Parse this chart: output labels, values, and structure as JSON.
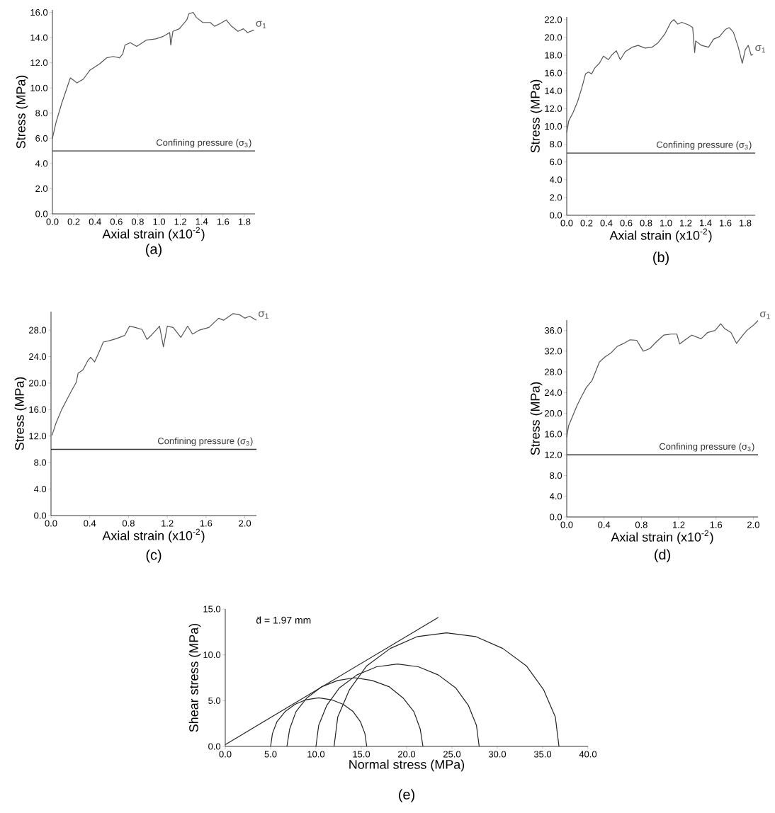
{
  "chart_data": [
    {
      "type": "line",
      "title": "(a)",
      "xlabel": "Axial strain (x10$^{-2}$)",
      "ylabel": "Stress (MPa)",
      "xlim": [
        0,
        1.9
      ],
      "ylim": [
        0,
        16.2
      ],
      "xticks": [
        {
          "value": 0,
          "label": "0.0"
        },
        0.2,
        0.4,
        0.6,
        0.8,
        {
          "value": 1,
          "label": "1.0"
        },
        1.2,
        1.4,
        1.6,
        1.8
      ],
      "yticks": [
        {
          "value": 0,
          "label": "0.0"
        },
        {
          "value": 2,
          "label": "2.0"
        },
        {
          "value": 4,
          "label": "4.0"
        },
        {
          "value": 6,
          "label": "6.0"
        },
        {
          "value": 8,
          "label": "8.0"
        },
        {
          "value": 10,
          "label": "10.0"
        },
        {
          "value": 12,
          "label": "12.0"
        },
        {
          "value": 14,
          "label": "14.0"
        },
        {
          "value": 16,
          "label": "16.0"
        }
      ],
      "x": [
        0,
        0.035,
        0.088,
        0.132,
        0.168,
        0.2,
        0.23,
        0.29,
        0.35,
        0.44,
        0.51,
        0.57,
        0.63,
        0.66,
        0.68,
        0.73,
        0.79,
        0.88,
        0.97,
        1.04,
        1.1,
        1.11,
        1.13,
        1.19,
        1.26,
        1.28,
        1.32,
        1.35,
        1.41,
        1.48,
        1.52,
        1.57,
        1.63,
        1.68,
        1.74,
        1.79,
        1.83,
        1.89
      ],
      "series": [
        {
          "name": "σ$_{1}$",
          "color": "#555555",
          "values": [
            6.0,
            7.3,
            8.8,
            9.9,
            10.8,
            10.6,
            10.4,
            10.7,
            11.4,
            11.9,
            12.4,
            12.5,
            12.4,
            12.7,
            13.4,
            13.6,
            13.3,
            13.8,
            13.9,
            14.1,
            14.4,
            13.4,
            14.5,
            14.7,
            15.4,
            15.9,
            16.0,
            15.6,
            15.2,
            15.2,
            14.9,
            15.1,
            15.4,
            14.9,
            14.5,
            14.7,
            14.4,
            14.6
          ]
        }
      ],
      "ref_lines": [
        {
          "axis": "y",
          "value": 5.0,
          "label": "Confining pressure (σ$_{3}$)",
          "color": "#333333"
        }
      ]
    },
    {
      "type": "line",
      "title": "(b)",
      "xlabel": "Axial strain (x10$^{-2}$)",
      "ylabel": "Stress (MPa)",
      "xlim": [
        0,
        1.9
      ],
      "ylim": [
        0,
        22.3
      ],
      "xticks": [
        {
          "value": 0,
          "label": "0.0"
        },
        0.2,
        0.4,
        0.6,
        0.8,
        {
          "value": 1,
          "label": "1.0"
        },
        1.2,
        1.4,
        1.6,
        1.8
      ],
      "yticks": [
        {
          "value": 0,
          "label": "0.0"
        },
        {
          "value": 2,
          "label": "2.0"
        },
        {
          "value": 4,
          "label": "4.0"
        },
        {
          "value": 6,
          "label": "6.0"
        },
        {
          "value": 8,
          "label": "8.0"
        },
        {
          "value": 10,
          "label": "10.0"
        },
        {
          "value": 12,
          "label": "12.0"
        },
        {
          "value": 14,
          "label": "14.0"
        },
        {
          "value": 16,
          "label": "16.0"
        },
        {
          "value": 18,
          "label": "18.0"
        },
        {
          "value": 20,
          "label": "20.0"
        },
        {
          "value": 22,
          "label": "22.0"
        }
      ],
      "x": [
        0,
        0.02,
        0.066,
        0.11,
        0.154,
        0.189,
        0.22,
        0.25,
        0.285,
        0.33,
        0.37,
        0.42,
        0.46,
        0.5,
        0.54,
        0.59,
        0.66,
        0.72,
        0.79,
        0.86,
        0.92,
        0.99,
        1.05,
        1.08,
        1.12,
        1.16,
        1.23,
        1.27,
        1.29,
        1.3,
        1.36,
        1.43,
        1.48,
        1.54,
        1.6,
        1.64,
        1.68,
        1.73,
        1.77,
        1.8,
        1.83,
        1.86,
        1.88
      ],
      "series": [
        {
          "name": "σ$_{1}$",
          "color": "#555555",
          "values": [
            9.3,
            10.6,
            11.6,
            12.8,
            14.4,
            15.9,
            16.1,
            15.9,
            16.6,
            17.1,
            17.9,
            17.5,
            18.1,
            18.5,
            17.5,
            18.4,
            18.9,
            19.1,
            18.8,
            18.9,
            19.4,
            20.4,
            21.7,
            22.0,
            21.5,
            21.7,
            21.4,
            21.1,
            18.3,
            19.6,
            19.1,
            18.9,
            19.8,
            20.1,
            20.9,
            21.1,
            20.6,
            18.9,
            17.1,
            18.6,
            19.1,
            18.0,
            18.1
          ]
        }
      ],
      "ref_lines": [
        {
          "axis": "y",
          "value": 7.0,
          "label": "Confining pressure (σ$_{3}$)",
          "color": "#333333"
        }
      ]
    },
    {
      "type": "line",
      "title": "(c)",
      "xlabel": "Axial strain (x10$^{-2}$)",
      "ylabel": "Stress (MPa)",
      "xlim": [
        0,
        2.12
      ],
      "ylim": [
        0,
        30.8
      ],
      "xticks": [
        {
          "value": 0,
          "label": "0.0"
        },
        0.4,
        0.8,
        1.2,
        1.6,
        {
          "value": 2,
          "label": "2.0"
        }
      ],
      "yticks": [
        {
          "value": 0,
          "label": "0.0"
        },
        {
          "value": 4,
          "label": "4.0"
        },
        {
          "value": 8,
          "label": "8.0"
        },
        {
          "value": 12,
          "label": "12.0"
        },
        {
          "value": 16,
          "label": "16.0"
        },
        {
          "value": 20,
          "label": "20.0"
        },
        {
          "value": 24,
          "label": "24.0"
        },
        {
          "value": 28,
          "label": "28.0"
        }
      ],
      "x": [
        0.01,
        0.05,
        0.11,
        0.16,
        0.21,
        0.26,
        0.28,
        0.33,
        0.38,
        0.41,
        0.45,
        0.49,
        0.54,
        0.6,
        0.67,
        0.76,
        0.81,
        0.87,
        0.94,
        0.99,
        1.04,
        1.12,
        1.16,
        1.2,
        1.26,
        1.34,
        1.41,
        1.46,
        1.53,
        1.63,
        1.73,
        1.78,
        1.88,
        1.95,
        2.0,
        2.05,
        2.12
      ],
      "series": [
        {
          "name": "σ$_{1}$",
          "color": "#555555",
          "values": [
            12.1,
            13.9,
            16.0,
            17.4,
            18.8,
            20.1,
            21.5,
            22.0,
            23.4,
            23.9,
            23.2,
            24.5,
            26.2,
            26.4,
            26.7,
            27.2,
            28.6,
            28.4,
            28.1,
            26.6,
            27.3,
            28.6,
            25.5,
            28.6,
            28.4,
            26.9,
            28.6,
            27.4,
            28.0,
            28.4,
            29.8,
            29.5,
            30.5,
            30.3,
            29.8,
            30.1,
            29.5
          ]
        }
      ],
      "ref_lines": [
        {
          "axis": "y",
          "value": 10.0,
          "label": "Confining pressure (σ$_{3}$)",
          "color": "#333333"
        }
      ]
    },
    {
      "type": "line",
      "title": "(d)",
      "xlabel": "Axial strain (x10$^{-2}$)",
      "ylabel": "Stress (MPa)",
      "xlim": [
        0,
        2.05
      ],
      "ylim": [
        0,
        38
      ],
      "xticks": [
        {
          "value": 0,
          "label": "0.0"
        },
        0.4,
        0.8,
        1.2,
        1.6,
        {
          "value": 2,
          "label": "2.0"
        }
      ],
      "yticks": [
        {
          "value": 0,
          "label": "0.0"
        },
        {
          "value": 4,
          "label": "4.0"
        },
        {
          "value": 8,
          "label": "8.0"
        },
        {
          "value": 12,
          "label": "12.0"
        },
        {
          "value": 16,
          "label": "16.0"
        },
        {
          "value": 20,
          "label": "20.0"
        },
        {
          "value": 24,
          "label": "24.0"
        },
        {
          "value": 28,
          "label": "28.0"
        },
        {
          "value": 32,
          "label": "32.0"
        },
        {
          "value": 36,
          "label": "36.0"
        }
      ],
      "x": [
        0,
        0.02,
        0.06,
        0.11,
        0.16,
        0.21,
        0.27,
        0.31,
        0.35,
        0.41,
        0.47,
        0.54,
        0.61,
        0.68,
        0.75,
        0.82,
        0.89,
        0.96,
        1.04,
        1.12,
        1.18,
        1.21,
        1.27,
        1.34,
        1.44,
        1.51,
        1.59,
        1.65,
        1.69,
        1.76,
        1.82,
        1.87,
        1.93,
        2.0,
        2.05
      ],
      "series": [
        {
          "name": "σ$_{1}$",
          "color": "#555555",
          "values": [
            15.4,
            17.6,
            19.3,
            21.5,
            23.3,
            25.0,
            26.3,
            28.1,
            29.9,
            30.9,
            31.6,
            32.9,
            33.5,
            34.2,
            34.1,
            32.0,
            32.5,
            33.8,
            35.1,
            35.3,
            35.3,
            33.4,
            34.2,
            35.1,
            34.4,
            35.6,
            36.0,
            37.3,
            36.4,
            35.6,
            33.5,
            34.7,
            36.0,
            37.0,
            37.9
          ]
        }
      ],
      "ref_lines": [
        {
          "axis": "y",
          "value": 12.0,
          "label": "Confining pressure (σ$_{3}$)",
          "color": "#333333"
        }
      ]
    },
    {
      "type": "line",
      "title": "(e)",
      "xlabel": "Normal stress (MPa)",
      "ylabel": "Shear stress (MPa)",
      "xlim": [
        0,
        40
      ],
      "ylim": [
        0,
        15
      ],
      "xticks": [
        {
          "value": 0,
          "label": "0.0"
        },
        {
          "value": 5,
          "label": "5.0"
        },
        {
          "value": 10,
          "label": "10.0"
        },
        {
          "value": 15,
          "label": "15.0"
        },
        {
          "value": 20,
          "label": "20.0"
        },
        {
          "value": 25,
          "label": "25.0"
        },
        {
          "value": 30,
          "label": "30.0"
        },
        {
          "value": 35,
          "label": "35.0"
        },
        {
          "value": 40,
          "label": "40.0"
        }
      ],
      "yticks": [
        {
          "value": 0,
          "label": "0.0"
        },
        {
          "value": 5,
          "label": "5.0"
        },
        {
          "value": 10,
          "label": "10.0"
        },
        {
          "value": 15,
          "label": "15.0"
        }
      ],
      "annotations": [
        "d̄ = 1.97 mm"
      ],
      "series": [
        {
          "color": "#222222",
          "x": [
            5.0,
            5.2,
            5.7,
            6.6,
            7.7,
            8.9,
            10.3,
            11.7,
            13.0,
            14.1,
            14.9,
            15.4,
            15.6
          ],
          "values": [
            0,
            1.4,
            2.7,
            3.8,
            4.6,
            5.1,
            5.3,
            5.1,
            4.6,
            3.8,
            2.7,
            1.4,
            0
          ]
        },
        {
          "color": "#222222",
          "x": [
            6.8,
            7.1,
            7.8,
            9.0,
            10.6,
            12.4,
            14.3,
            16.2,
            18.1,
            19.6,
            20.8,
            21.5,
            21.8
          ],
          "values": [
            0,
            1.9,
            3.8,
            5.3,
            6.5,
            7.2,
            7.5,
            7.2,
            6.5,
            5.3,
            3.8,
            1.9,
            0
          ]
        },
        {
          "color": "#222222",
          "x": [
            10,
            10.3,
            11.2,
            12.6,
            14.5,
            16.7,
            19,
            21.3,
            23.5,
            25.4,
            26.8,
            27.7,
            28
          ],
          "values": [
            0,
            2.3,
            4.5,
            6.4,
            7.8,
            8.7,
            9,
            8.7,
            7.8,
            6.4,
            4.5,
            2.3,
            0
          ]
        },
        {
          "color": "#222222",
          "x": [
            12,
            12.4,
            13.7,
            15.6,
            18.2,
            21.2,
            24.4,
            27.6,
            30.6,
            33.2,
            35.1,
            36.4,
            36.8
          ],
          "values": [
            0,
            3.2,
            6.2,
            8.8,
            10.7,
            12.0,
            12.4,
            12.0,
            10.7,
            8.8,
            6.2,
            3.2,
            0
          ]
        },
        {
          "color": "#222222",
          "x": [
            0,
            23.5
          ],
          "values": [
            0.2,
            14.1
          ]
        }
      ]
    }
  ]
}
